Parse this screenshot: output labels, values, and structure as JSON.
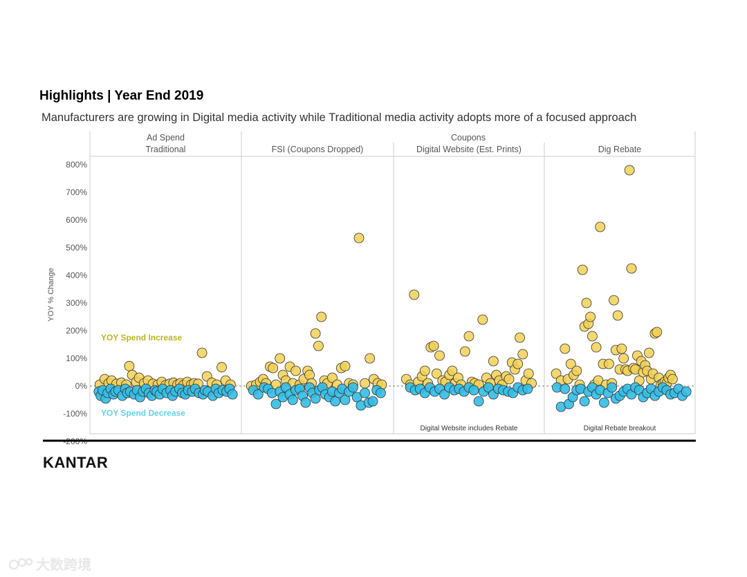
{
  "title": "Highlights | Year End 2019",
  "subtitle": "Manufacturers are growing in Digital media activity while Traditional media activity adopts more of a focused approach",
  "logo": "KANTAR",
  "watermark": "大数跨境",
  "colors": {
    "increase": "#f2d055",
    "decrease": "#33bde6",
    "stroke": "#333333",
    "increase_label": "#b8b61a",
    "decrease_label": "#5fd1ea",
    "grid": "#cccccc"
  },
  "chart_data": {
    "type": "scatter",
    "ylabel": "YOY % Change",
    "ylim": [
      -200,
      800
    ],
    "yticks": [
      800,
      700,
      600,
      500,
      400,
      300,
      200,
      100,
      0,
      -100,
      -200
    ],
    "ytick_labels": [
      "800%",
      "700%",
      "600%",
      "500%",
      "400%",
      "300%",
      "200%",
      "100%",
      "0%",
      "-100%",
      "-200%"
    ],
    "group_headers": [
      {
        "label": "Ad Spend",
        "spans": [
          0
        ]
      },
      {
        "label": "Coupons",
        "spans": [
          1,
          2,
          3
        ]
      }
    ],
    "annotations": {
      "increase": "YOY Spend Increase",
      "decrease": "YOY Spend Decrease"
    },
    "panels": [
      {
        "name": "Traditional",
        "note": "",
        "increase": [
          [
            3,
            5
          ],
          [
            8,
            25
          ],
          [
            12,
            10
          ],
          [
            15,
            20
          ],
          [
            20,
            8
          ],
          [
            25,
            12
          ],
          [
            30,
            5
          ],
          [
            33,
            72
          ],
          [
            36,
            40
          ],
          [
            40,
            15
          ],
          [
            43,
            30
          ],
          [
            48,
            10
          ],
          [
            52,
            20
          ],
          [
            57,
            8
          ],
          [
            62,
            5
          ],
          [
            66,
            15
          ],
          [
            70,
            3
          ],
          [
            74,
            8
          ],
          [
            78,
            12
          ],
          [
            82,
            5
          ],
          [
            85,
            10
          ],
          [
            88,
            3
          ],
          [
            92,
            15
          ],
          [
            96,
            5
          ],
          [
            99,
            10
          ],
          [
            103,
            8
          ],
          [
            107,
            120
          ],
          [
            112,
            35
          ],
          [
            117,
            12
          ],
          [
            122,
            5
          ],
          [
            127,
            68
          ],
          [
            131,
            20
          ],
          [
            136,
            5
          ]
        ],
        "decrease": [
          [
            2,
            -20
          ],
          [
            4,
            -35
          ],
          [
            6,
            -15
          ],
          [
            9,
            -45
          ],
          [
            11,
            -25
          ],
          [
            14,
            -10
          ],
          [
            17,
            -30
          ],
          [
            19,
            -20
          ],
          [
            22,
            -15
          ],
          [
            26,
            -35
          ],
          [
            29,
            -10
          ],
          [
            31,
            -25
          ],
          [
            34,
            -20
          ],
          [
            38,
            -30
          ],
          [
            41,
            -15
          ],
          [
            44,
            -40
          ],
          [
            47,
            -20
          ],
          [
            50,
            -10
          ],
          [
            53,
            -25
          ],
          [
            56,
            -35
          ],
          [
            59,
            -15
          ],
          [
            61,
            -20
          ],
          [
            64,
            -30
          ],
          [
            67,
            -10
          ],
          [
            71,
            -25
          ],
          [
            75,
            -15
          ],
          [
            77,
            -35
          ],
          [
            80,
            -20
          ],
          [
            84,
            -10
          ],
          [
            87,
            -25
          ],
          [
            90,
            -30
          ],
          [
            93,
            -15
          ],
          [
            97,
            -20
          ],
          [
            100,
            -10
          ],
          [
            104,
            -25
          ],
          [
            108,
            -30
          ],
          [
            110,
            -15
          ],
          [
            113,
            -20
          ],
          [
            118,
            -35
          ],
          [
            121,
            -10
          ],
          [
            124,
            -25
          ],
          [
            128,
            -15
          ],
          [
            132,
            -20
          ],
          [
            135,
            -10
          ],
          [
            138,
            -30
          ]
        ]
      },
      {
        "name": "FSI (Coupons Dropped)",
        "note": "",
        "increase": [
          [
            3,
            0
          ],
          [
            8,
            5
          ],
          [
            12,
            15
          ],
          [
            15,
            25
          ],
          [
            18,
            10
          ],
          [
            22,
            70
          ],
          [
            25,
            65
          ],
          [
            28,
            5
          ],
          [
            32,
            100
          ],
          [
            35,
            40
          ],
          [
            38,
            20
          ],
          [
            42,
            70
          ],
          [
            45,
            10
          ],
          [
            48,
            55
          ],
          [
            52,
            5
          ],
          [
            56,
            25
          ],
          [
            60,
            55
          ],
          [
            62,
            40
          ],
          [
            64,
            10
          ],
          [
            68,
            190
          ],
          [
            71,
            145
          ],
          [
            74,
            250
          ],
          [
            77,
            20
          ],
          [
            80,
            10
          ],
          [
            85,
            30
          ],
          [
            90,
            5
          ],
          [
            94,
            65
          ],
          [
            98,
            72
          ],
          [
            102,
            10
          ],
          [
            106,
            5
          ],
          [
            112,
            535
          ],
          [
            118,
            10
          ],
          [
            123,
            100
          ],
          [
            127,
            25
          ],
          [
            131,
            10
          ],
          [
            135,
            5
          ]
        ],
        "decrease": [
          [
            5,
            -15
          ],
          [
            10,
            -30
          ],
          [
            16,
            -5
          ],
          [
            20,
            -10
          ],
          [
            24,
            -25
          ],
          [
            28,
            -65
          ],
          [
            32,
            -20
          ],
          [
            35,
            -40
          ],
          [
            38,
            -5
          ],
          [
            42,
            -30
          ],
          [
            45,
            -50
          ],
          [
            48,
            -15
          ],
          [
            52,
            -10
          ],
          [
            55,
            -35
          ],
          [
            58,
            -60
          ],
          [
            62,
            -5
          ],
          [
            65,
            -25
          ],
          [
            68,
            -45
          ],
          [
            72,
            -15
          ],
          [
            75,
            -5
          ],
          [
            78,
            -30
          ],
          [
            82,
            -40
          ],
          [
            85,
            -20
          ],
          [
            88,
            -55
          ],
          [
            92,
            -25
          ],
          [
            95,
            -10
          ],
          [
            98,
            -50
          ],
          [
            102,
            -20
          ],
          [
            106,
            -5
          ],
          [
            110,
            -40
          ],
          [
            114,
            -70
          ],
          [
            118,
            -25
          ],
          [
            122,
            -60
          ],
          [
            126,
            -55
          ],
          [
            130,
            -15
          ],
          [
            134,
            -25
          ]
        ]
      },
      {
        "name": "Digital Website (Est. Prints)",
        "note": "Digital Website includes Rebate",
        "increase": [
          [
            6,
            25
          ],
          [
            10,
            5
          ],
          [
            14,
            330
          ],
          [
            18,
            15
          ],
          [
            22,
            35
          ],
          [
            25,
            55
          ],
          [
            28,
            10
          ],
          [
            31,
            140
          ],
          [
            34,
            145
          ],
          [
            37,
            45
          ],
          [
            40,
            110
          ],
          [
            43,
            20
          ],
          [
            46,
            15
          ],
          [
            50,
            40
          ],
          [
            53,
            55
          ],
          [
            56,
            10
          ],
          [
            59,
            30
          ],
          [
            62,
            5
          ],
          [
            66,
            125
          ],
          [
            70,
            180
          ],
          [
            73,
            15
          ],
          [
            76,
            10
          ],
          [
            80,
            5
          ],
          [
            84,
            240
          ],
          [
            88,
            30
          ],
          [
            92,
            10
          ],
          [
            95,
            90
          ],
          [
            98,
            40
          ],
          [
            101,
            20
          ],
          [
            104,
            5
          ],
          [
            108,
            35
          ],
          [
            111,
            25
          ],
          [
            114,
            85
          ],
          [
            117,
            60
          ],
          [
            120,
            80
          ],
          [
            122,
            175
          ],
          [
            125,
            115
          ],
          [
            128,
            20
          ],
          [
            131,
            45
          ],
          [
            134,
            10
          ]
        ],
        "decrease": [
          [
            10,
            -5
          ],
          [
            15,
            -15
          ],
          [
            20,
            -10
          ],
          [
            25,
            -25
          ],
          [
            30,
            -5
          ],
          [
            35,
            -20
          ],
          [
            40,
            -10
          ],
          [
            45,
            -30
          ],
          [
            50,
            -5
          ],
          [
            55,
            -15
          ],
          [
            60,
            -10
          ],
          [
            65,
            -20
          ],
          [
            70,
            -5
          ],
          [
            75,
            -15
          ],
          [
            80,
            -55
          ],
          [
            85,
            -20
          ],
          [
            90,
            -5
          ],
          [
            95,
            -30
          ],
          [
            100,
            -10
          ],
          [
            105,
            -15
          ],
          [
            110,
            -20
          ],
          [
            115,
            -25
          ],
          [
            120,
            -5
          ],
          [
            125,
            -15
          ],
          [
            130,
            -10
          ]
        ]
      },
      {
        "name": "Dig Rebate",
        "note": "Digital Rebate breakout",
        "increase": [
          [
            5,
            45
          ],
          [
            10,
            20
          ],
          [
            14,
            135
          ],
          [
            17,
            25
          ],
          [
            20,
            80
          ],
          [
            23,
            40
          ],
          [
            26,
            55
          ],
          [
            29,
            5
          ],
          [
            32,
            420
          ],
          [
            34,
            215
          ],
          [
            36,
            300
          ],
          [
            38,
            225
          ],
          [
            40,
            250
          ],
          [
            42,
            180
          ],
          [
            44,
            5
          ],
          [
            46,
            140
          ],
          [
            48,
            20
          ],
          [
            50,
            575
          ],
          [
            53,
            80
          ],
          [
            56,
            5
          ],
          [
            59,
            80
          ],
          [
            62,
            10
          ],
          [
            64,
            310
          ],
          [
            66,
            130
          ],
          [
            68,
            255
          ],
          [
            70,
            60
          ],
          [
            72,
            135
          ],
          [
            74,
            100
          ],
          [
            76,
            60
          ],
          [
            78,
            55
          ],
          [
            80,
            780
          ],
          [
            82,
            425
          ],
          [
            84,
            65
          ],
          [
            86,
            60
          ],
          [
            88,
            110
          ],
          [
            90,
            20
          ],
          [
            92,
            90
          ],
          [
            94,
            50
          ],
          [
            96,
            75
          ],
          [
            98,
            55
          ],
          [
            100,
            120
          ],
          [
            102,
            25
          ],
          [
            104,
            45
          ],
          [
            106,
            190
          ],
          [
            108,
            195
          ],
          [
            110,
            30
          ],
          [
            112,
            5
          ],
          [
            114,
            10
          ],
          [
            116,
            15
          ],
          [
            118,
            10
          ],
          [
            120,
            30
          ],
          [
            122,
            40
          ],
          [
            124,
            25
          ]
        ],
        "decrease": [
          [
            6,
            -5
          ],
          [
            10,
            -75
          ],
          [
            14,
            -10
          ],
          [
            18,
            -65
          ],
          [
            22,
            -40
          ],
          [
            26,
            -15
          ],
          [
            30,
            -10
          ],
          [
            34,
            -55
          ],
          [
            38,
            -20
          ],
          [
            42,
            -5
          ],
          [
            46,
            -30
          ],
          [
            50,
            -15
          ],
          [
            54,
            -60
          ],
          [
            58,
            -25
          ],
          [
            62,
            -5
          ],
          [
            66,
            -45
          ],
          [
            70,
            -35
          ],
          [
            74,
            -20
          ],
          [
            78,
            -10
          ],
          [
            82,
            -30
          ],
          [
            86,
            -5
          ],
          [
            90,
            -15
          ],
          [
            94,
            -40
          ],
          [
            98,
            -25
          ],
          [
            102,
            -10
          ],
          [
            106,
            -35
          ],
          [
            110,
            -20
          ],
          [
            114,
            -5
          ],
          [
            118,
            -15
          ],
          [
            122,
            -30
          ],
          [
            126,
            -25
          ],
          [
            130,
            -10
          ],
          [
            134,
            -35
          ],
          [
            138,
            -20
          ]
        ]
      }
    ]
  }
}
